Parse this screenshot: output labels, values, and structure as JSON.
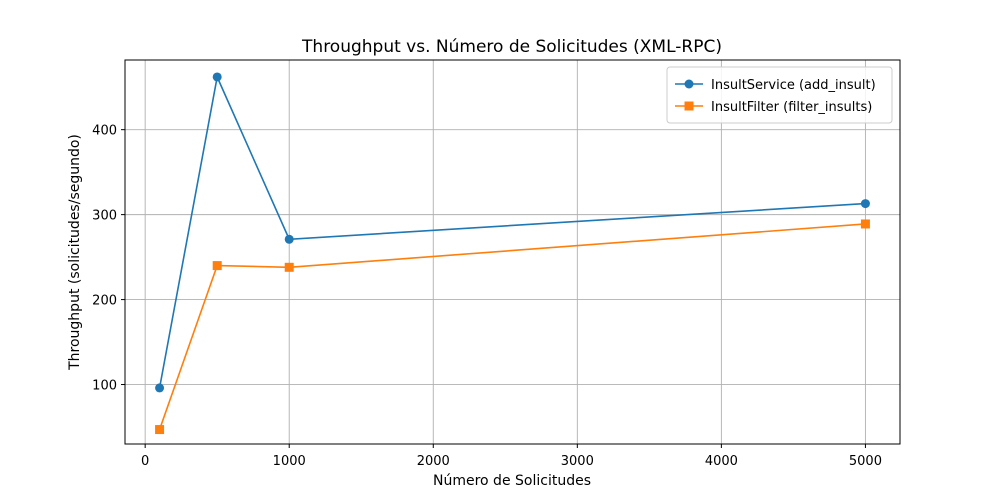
{
  "chart_data": {
    "type": "line",
    "title": "Throughput vs. Número de Solicitudes (XML-RPC)",
    "xlabel": "Número de Solicitudes",
    "ylabel": "Throughput (solicitudes/segundo)",
    "xlim": [
      -140,
      5240
    ],
    "ylim": [
      30,
      482
    ],
    "xticks": [
      0,
      1000,
      2000,
      3000,
      4000,
      5000
    ],
    "yticks": [
      100,
      200,
      300,
      400
    ],
    "grid": true,
    "legend_position": "top-right",
    "series": [
      {
        "name": "InsultService (add_insult)",
        "color": "#1f77b4",
        "marker": "circle",
        "x": [
          100,
          500,
          1000,
          5000
        ],
        "y": [
          96,
          462,
          271,
          313
        ]
      },
      {
        "name": "InsultFilter (filter_insults)",
        "color": "#ff7f0e",
        "marker": "square",
        "x": [
          100,
          500,
          1000,
          5000
        ],
        "y": [
          47,
          240,
          238,
          289
        ]
      }
    ]
  }
}
